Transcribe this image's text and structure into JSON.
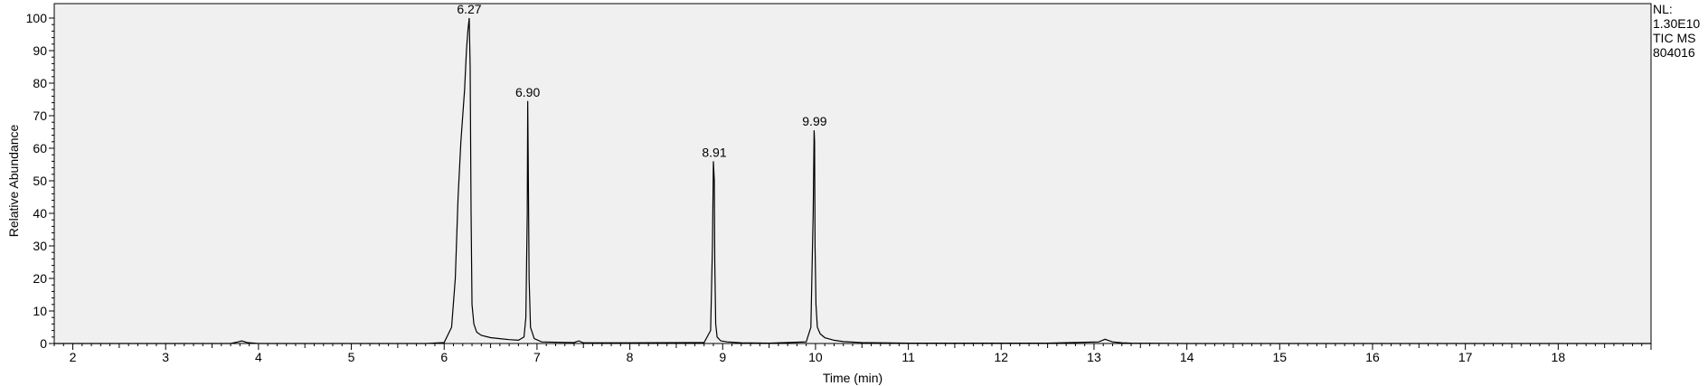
{
  "chart_data": {
    "type": "line",
    "xlabel": "Time (min)",
    "ylabel": "Relative Abundance",
    "xlim": [
      1.8,
      19.0
    ],
    "ylim": [
      0,
      100
    ],
    "x_ticks": [
      2,
      3,
      4,
      5,
      6,
      7,
      8,
      9,
      10,
      11,
      12,
      13,
      14,
      15,
      16,
      17,
      18
    ],
    "y_ticks": [
      0,
      10,
      20,
      30,
      40,
      50,
      60,
      70,
      80,
      90,
      100
    ],
    "grid": false,
    "info_lines": [
      "NL:",
      "1.30E10",
      "TIC  MS",
      "804016"
    ],
    "peak_labels": [
      {
        "x": 6.27,
        "y": 100,
        "label": "6.27"
      },
      {
        "x": 6.9,
        "y": 74.5,
        "label": "6.90"
      },
      {
        "x": 8.91,
        "y": 56,
        "label": "8.91"
      },
      {
        "x": 9.99,
        "y": 65.5,
        "label": "9.99"
      }
    ],
    "series": [
      {
        "x": [
          1.8,
          3.7,
          3.78,
          3.82,
          3.88,
          4.0,
          5.8,
          6.0,
          6.08,
          6.12,
          6.15,
          6.18,
          6.2,
          6.22,
          6.24,
          6.255,
          6.27,
          6.28,
          6.29,
          6.3,
          6.32,
          6.35,
          6.4,
          6.5,
          6.6,
          6.7,
          6.8,
          6.86,
          6.88,
          6.895,
          6.9,
          6.905,
          6.915,
          6.93,
          6.97,
          7.05,
          7.2,
          7.4,
          7.45,
          7.5,
          7.7,
          8.0,
          8.8,
          8.87,
          8.89,
          8.9,
          8.91,
          8.915,
          8.925,
          8.94,
          8.98,
          9.05,
          9.2,
          9.5,
          9.9,
          9.95,
          9.975,
          9.985,
          9.99,
          9.995,
          10.005,
          10.02,
          10.05,
          10.1,
          10.2,
          10.3,
          10.5,
          11.0,
          12.5,
          13.05,
          13.12,
          13.15,
          13.2,
          13.3,
          13.4,
          14.0,
          19.0
        ],
        "y": [
          0,
          0,
          0.5,
          0.8,
          0.3,
          0,
          0,
          0.3,
          5,
          20,
          45,
          62,
          70,
          78,
          90,
          96,
          100,
          85,
          40,
          12,
          6,
          3.5,
          2.5,
          1.8,
          1.5,
          1.2,
          1.0,
          2,
          8,
          40,
          74.5,
          58,
          20,
          5,
          1.5,
          0.5,
          0.4,
          0.3,
          0.8,
          0.2,
          0.2,
          0.2,
          0.3,
          4,
          30,
          56,
          50,
          25,
          6,
          2,
          0.8,
          0.5,
          0.2,
          0.1,
          0.5,
          5,
          40,
          65.5,
          62,
          30,
          12,
          5,
          3,
          1.8,
          1.0,
          0.6,
          0.3,
          0.1,
          0.1,
          0.5,
          1.3,
          1.0,
          0.5,
          0.2,
          0.1,
          0,
          0
        ]
      }
    ]
  }
}
